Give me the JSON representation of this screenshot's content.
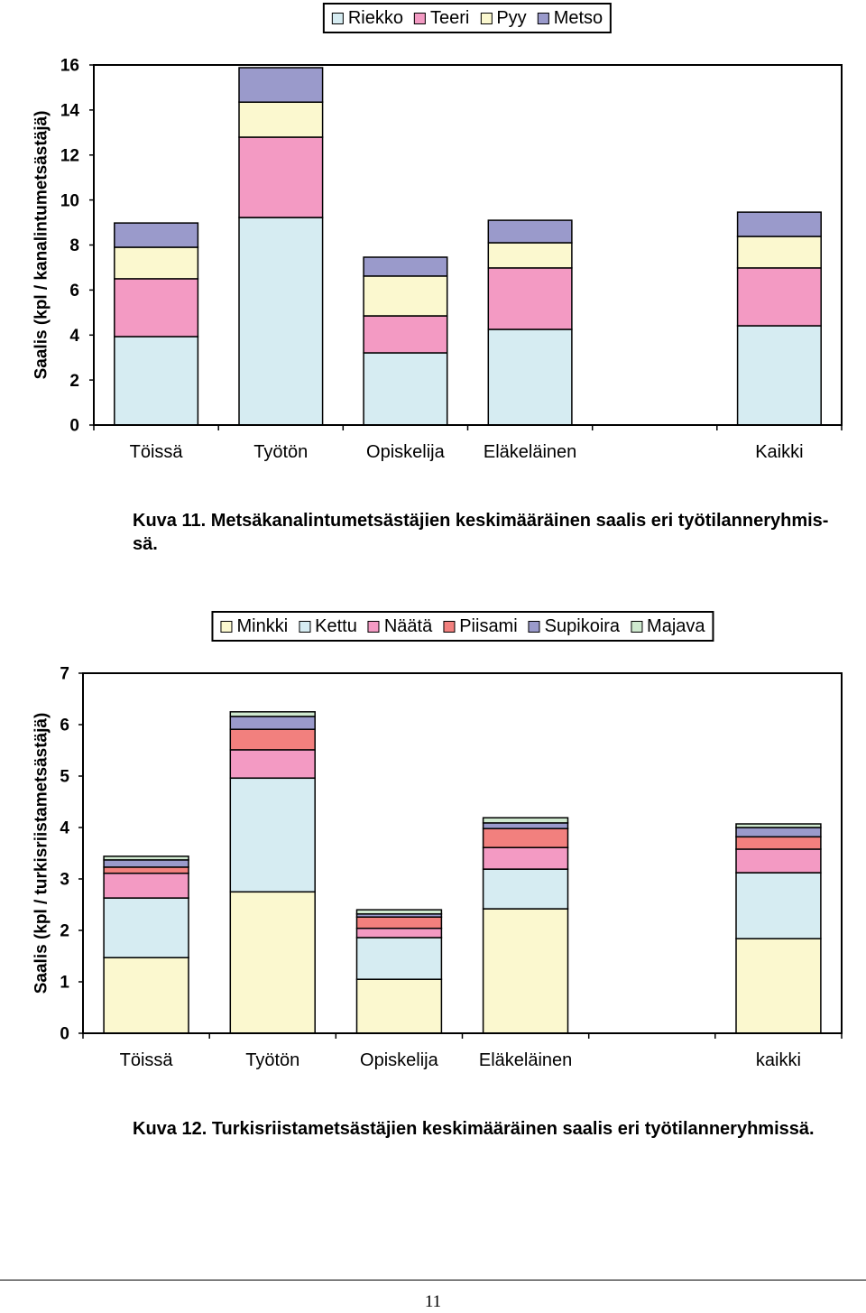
{
  "chart_data": [
    {
      "type": "bar",
      "stacked": true,
      "categories": [
        "Töissä",
        "Työtön",
        "Opiskelija",
        "Eläkeläinen",
        "",
        "Kaikki"
      ],
      "series": [
        {
          "name": "Riekko",
          "color": "#d6ecf2",
          "values": [
            3.93,
            9.22,
            3.21,
            4.25,
            null,
            4.41
          ]
        },
        {
          "name": "Teeri",
          "color": "#f39ac3",
          "values": [
            2.57,
            3.57,
            1.64,
            2.73,
            null,
            2.57
          ]
        },
        {
          "name": "Pyy",
          "color": "#fbf8cf",
          "values": [
            1.4,
            1.56,
            1.77,
            1.12,
            null,
            1.4
          ]
        },
        {
          "name": "Metso",
          "color": "#9a9acb",
          "values": [
            1.08,
            1.53,
            0.84,
            1.0,
            null,
            1.08
          ]
        }
      ],
      "ylabel": "Saalis (kpl / kanalintumetsästäjä)",
      "ylim": [
        0,
        16
      ],
      "yticks": [
        0,
        2,
        4,
        6,
        8,
        10,
        12,
        14,
        16
      ],
      "grid": false,
      "legend": "top-center",
      "caption": [
        "Kuva 11. Metsäkanalintumetsästäjien keskimääräinen saalis eri työtilanneryhmis-",
        "sä."
      ]
    },
    {
      "type": "bar",
      "stacked": true,
      "categories": [
        "Töissä",
        "Työtön",
        "Opiskelija",
        "Eläkeläinen",
        "",
        "kaikki"
      ],
      "series": [
        {
          "name": "Minkki",
          "color": "#fbf8cf",
          "values": [
            1.47,
            2.75,
            1.05,
            2.42,
            null,
            1.84
          ]
        },
        {
          "name": "Kettu",
          "color": "#d6ecf2",
          "values": [
            1.16,
            2.21,
            0.81,
            0.77,
            null,
            1.28
          ]
        },
        {
          "name": "Näätä",
          "color": "#f39ac3",
          "values": [
            0.48,
            0.55,
            0.18,
            0.42,
            null,
            0.46
          ]
        },
        {
          "name": "Piisami",
          "color": "#f2807e",
          "values": [
            0.12,
            0.4,
            0.22,
            0.37,
            null,
            0.24
          ]
        },
        {
          "name": "Supikoira",
          "color": "#9a9acb",
          "values": [
            0.14,
            0.25,
            0.06,
            0.11,
            null,
            0.18
          ]
        },
        {
          "name": "Majava",
          "color": "#cfe9cf",
          "values": [
            0.07,
            0.09,
            0.08,
            0.1,
            null,
            0.07
          ]
        }
      ],
      "ylabel": "Saalis (kpl / turkisriistametsästäjä)",
      "ylim": [
        0,
        7
      ],
      "yticks": [
        0,
        1,
        2,
        3,
        4,
        5,
        6,
        7
      ],
      "grid": false,
      "legend": "top-center",
      "caption": [
        "Kuva 12. Turkisriistametsästäjien keskimääräinen saalis eri työtilanneryhmissä."
      ]
    }
  ],
  "page": {
    "number": "11"
  }
}
